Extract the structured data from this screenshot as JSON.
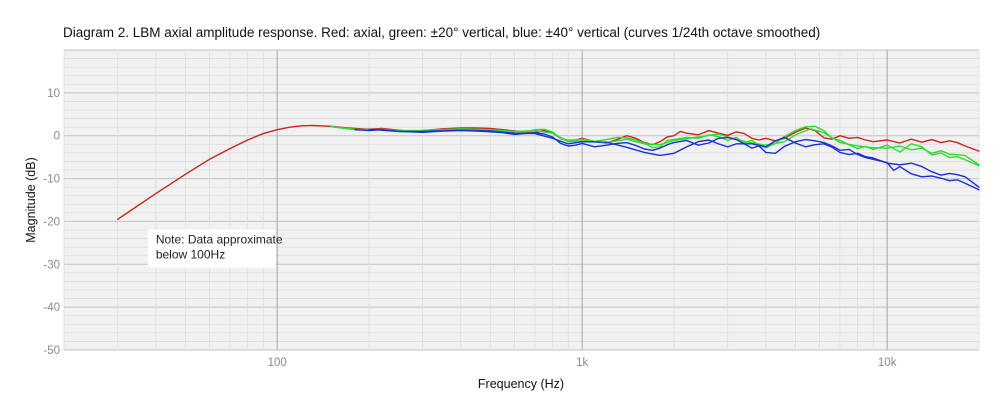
{
  "chart_data": {
    "type": "line",
    "title": "Diagram 2. LBM axial amplitude response. Red: axial, green: ±20° vertical, blue: ±40° vertical (curves 1/24th octave smoothed)",
    "xlabel": "Frequency (Hz)",
    "ylabel": "Magnitude (dB)",
    "xscale": "log",
    "xlim": [
      20,
      20000
    ],
    "ylim": [
      -50,
      20
    ],
    "x_ticks": [
      {
        "value": 100,
        "label": "100"
      },
      {
        "value": 1000,
        "label": "1k"
      },
      {
        "value": 10000,
        "label": "10k"
      }
    ],
    "y_ticks": [
      {
        "value": 10,
        "label": "10"
      },
      {
        "value": 0,
        "label": "0"
      },
      {
        "value": -10,
        "label": "-10"
      },
      {
        "value": -20,
        "label": "-20"
      },
      {
        "value": -30,
        "label": "-30"
      },
      {
        "value": -40,
        "label": "-40"
      },
      {
        "value": -50,
        "label": "-50"
      }
    ],
    "grid": true,
    "legend": "none",
    "annotation": {
      "lines": [
        "Note: Data approximate",
        "below 100Hz"
      ],
      "x": 40,
      "y": -24
    },
    "series": [
      {
        "color": "#c8261e",
        "points": [
          [
            30,
            -19.5
          ],
          [
            40,
            -13.5
          ],
          [
            50,
            -9
          ],
          [
            60,
            -5.5
          ],
          [
            70,
            -3
          ],
          [
            80,
            -1
          ],
          [
            90,
            0.5
          ],
          [
            100,
            1.4
          ],
          [
            110,
            2
          ],
          [
            120,
            2.3
          ],
          [
            130,
            2.4
          ],
          [
            150,
            2.2
          ],
          [
            170,
            1.8
          ],
          [
            200,
            1.5
          ],
          [
            220,
            1.7
          ],
          [
            250,
            1.3
          ],
          [
            280,
            1
          ],
          [
            300,
            1.2
          ],
          [
            350,
            1.6
          ],
          [
            400,
            1.8
          ],
          [
            450,
            1.8
          ],
          [
            500,
            1.7
          ],
          [
            550,
            1.4
          ],
          [
            600,
            1.1
          ],
          [
            650,
            0.7
          ],
          [
            700,
            0.8
          ],
          [
            750,
            1.2
          ],
          [
            800,
            0.6
          ],
          [
            850,
            -0.6
          ],
          [
            900,
            -1.1
          ],
          [
            950,
            -1
          ],
          [
            1000,
            -0.6
          ],
          [
            1100,
            -1.4
          ],
          [
            1200,
            -1.7
          ],
          [
            1300,
            -0.9
          ],
          [
            1400,
            0
          ],
          [
            1500,
            -0.6
          ],
          [
            1600,
            -1.6
          ],
          [
            1700,
            -2.1
          ],
          [
            1800,
            -1.4
          ],
          [
            1900,
            -0.3
          ],
          [
            2000,
            0
          ],
          [
            2100,
            1
          ],
          [
            2200,
            0.6
          ],
          [
            2400,
            0.2
          ],
          [
            2600,
            1.2
          ],
          [
            2800,
            0.6
          ],
          [
            3000,
            0.1
          ],
          [
            3200,
            0.9
          ],
          [
            3400,
            0.5
          ],
          [
            3600,
            -0.6
          ],
          [
            3800,
            -1
          ],
          [
            4000,
            -0.6
          ],
          [
            4300,
            -1.2
          ],
          [
            4600,
            -0.6
          ],
          [
            5000,
            0.8
          ],
          [
            5400,
            1.8
          ],
          [
            5800,
            1.2
          ],
          [
            6200,
            -0.5
          ],
          [
            6600,
            -0.8
          ],
          [
            7000,
            0
          ],
          [
            7500,
            -0.6
          ],
          [
            8000,
            -0.4
          ],
          [
            8500,
            -1
          ],
          [
            9000,
            -1.4
          ],
          [
            10000,
            -1
          ],
          [
            11000,
            -1.7
          ],
          [
            12000,
            -0.8
          ],
          [
            13000,
            -1.5
          ],
          [
            14000,
            -0.9
          ],
          [
            15000,
            -1.6
          ],
          [
            16000,
            -1.2
          ],
          [
            17000,
            -1.6
          ],
          [
            18000,
            -2.4
          ],
          [
            20000,
            -3.6
          ]
        ]
      },
      {
        "color": "#2fdc2f",
        "points": [
          [
            150,
            2.1
          ],
          [
            180,
            1.4
          ],
          [
            200,
            1.3
          ],
          [
            220,
            1.5
          ],
          [
            250,
            1.1
          ],
          [
            300,
            1.1
          ],
          [
            350,
            1.4
          ],
          [
            400,
            1.5
          ],
          [
            450,
            1.4
          ],
          [
            500,
            1.3
          ],
          [
            550,
            1.1
          ],
          [
            600,
            0.9
          ],
          [
            650,
            0.9
          ],
          [
            700,
            1.4
          ],
          [
            750,
            1.5
          ],
          [
            800,
            0.9
          ],
          [
            850,
            -0.7
          ],
          [
            900,
            -1.2
          ],
          [
            1000,
            -0.8
          ],
          [
            1100,
            -1.3
          ],
          [
            1200,
            -0.9
          ],
          [
            1300,
            -0.4
          ],
          [
            1400,
            -0.5
          ],
          [
            1500,
            -1
          ],
          [
            1600,
            -1.7
          ],
          [
            1700,
            -2.8
          ],
          [
            1800,
            -2.6
          ],
          [
            1900,
            -1.1
          ],
          [
            2000,
            -0.9
          ],
          [
            2200,
            -0.4
          ],
          [
            2400,
            -0.6
          ],
          [
            2600,
            0.2
          ],
          [
            2800,
            -0.2
          ],
          [
            3000,
            -1.1
          ],
          [
            3200,
            -0.4
          ],
          [
            3400,
            -1.6
          ],
          [
            3600,
            -1.1
          ],
          [
            3800,
            -2.2
          ],
          [
            4000,
            -2.8
          ],
          [
            4300,
            -1.8
          ],
          [
            4600,
            -0.2
          ],
          [
            5000,
            1.2
          ],
          [
            5400,
            2.1
          ],
          [
            5800,
            2.2
          ],
          [
            6200,
            1.2
          ],
          [
            6600,
            -0.6
          ],
          [
            7000,
            -1.1
          ],
          [
            7500,
            -2.1
          ],
          [
            8000,
            -3
          ],
          [
            8500,
            -2.5
          ],
          [
            9000,
            -3.2
          ],
          [
            10000,
            -2.2
          ],
          [
            11000,
            -3.8
          ],
          [
            12000,
            -1.9
          ],
          [
            13000,
            -2.6
          ],
          [
            14000,
            -4.5
          ],
          [
            15000,
            -4
          ],
          [
            16000,
            -5.1
          ],
          [
            17000,
            -4.9
          ],
          [
            18000,
            -5.6
          ],
          [
            20000,
            -7
          ]
        ]
      },
      {
        "color": "#2fdc2f",
        "points": [
          [
            150,
            2.1
          ],
          [
            180,
            1.5
          ],
          [
            200,
            1.4
          ],
          [
            250,
            1.2
          ],
          [
            300,
            1.2
          ],
          [
            400,
            1.6
          ],
          [
            500,
            1.4
          ],
          [
            600,
            1
          ],
          [
            700,
            1.2
          ],
          [
            800,
            0.6
          ],
          [
            900,
            -1.4
          ],
          [
            1000,
            -1.2
          ],
          [
            1200,
            -1.6
          ],
          [
            1400,
            -0.8
          ],
          [
            1600,
            -1.9
          ],
          [
            1800,
            -2.1
          ],
          [
            2000,
            -1.1
          ],
          [
            2400,
            -0.3
          ],
          [
            2800,
            0.4
          ],
          [
            3200,
            -0.9
          ],
          [
            3600,
            -1.7
          ],
          [
            4000,
            -2.2
          ],
          [
            4600,
            -1.4
          ],
          [
            5000,
            0.2
          ],
          [
            5600,
            1.6
          ],
          [
            6200,
            0.7
          ],
          [
            7000,
            -1.6
          ],
          [
            8000,
            -2.4
          ],
          [
            9000,
            -2.8
          ],
          [
            10000,
            -2.9
          ],
          [
            11000,
            -2.4
          ],
          [
            12000,
            -3.3
          ],
          [
            13000,
            -2.9
          ],
          [
            14000,
            -4.1
          ],
          [
            15000,
            -3.5
          ],
          [
            16000,
            -4.3
          ],
          [
            18000,
            -4.6
          ],
          [
            20000,
            -6.8
          ]
        ]
      },
      {
        "color": "#1b2fd6",
        "points": [
          [
            180,
            1.4
          ],
          [
            200,
            1.2
          ],
          [
            220,
            1.4
          ],
          [
            250,
            1
          ],
          [
            300,
            0.8
          ],
          [
            350,
            1.1
          ],
          [
            400,
            1.2
          ],
          [
            450,
            1.1
          ],
          [
            500,
            0.9
          ],
          [
            550,
            0.7
          ],
          [
            600,
            0.3
          ],
          [
            650,
            0.5
          ],
          [
            700,
            0.7
          ],
          [
            750,
            0.4
          ],
          [
            800,
            -0.3
          ],
          [
            850,
            -1.8
          ],
          [
            900,
            -2.4
          ],
          [
            950,
            -2.2
          ],
          [
            1000,
            -1.8
          ],
          [
            1100,
            -2.6
          ],
          [
            1200,
            -2.2
          ],
          [
            1300,
            -1.8
          ],
          [
            1400,
            -1.6
          ],
          [
            1500,
            -2.3
          ],
          [
            1600,
            -3.1
          ],
          [
            1700,
            -3.4
          ],
          [
            1800,
            -2.9
          ],
          [
            1900,
            -2.1
          ],
          [
            2000,
            -1.6
          ],
          [
            2200,
            -1.1
          ],
          [
            2400,
            -2.2
          ],
          [
            2600,
            -1.7
          ],
          [
            2800,
            -0.6
          ],
          [
            3000,
            -0.4
          ],
          [
            3200,
            -0.9
          ],
          [
            3400,
            -1.9
          ],
          [
            3600,
            -2.9
          ],
          [
            3800,
            -2.4
          ],
          [
            4000,
            -3.9
          ],
          [
            4300,
            -4.1
          ],
          [
            4600,
            -2.5
          ],
          [
            5000,
            -1.4
          ],
          [
            5400,
            -0.9
          ],
          [
            5800,
            -1.2
          ],
          [
            6200,
            -1.6
          ],
          [
            6600,
            -2.4
          ],
          [
            7000,
            -3.4
          ],
          [
            7500,
            -3.2
          ],
          [
            8000,
            -4.4
          ],
          [
            8500,
            -5.1
          ],
          [
            9000,
            -5.5
          ],
          [
            10000,
            -6.3
          ],
          [
            10500,
            -8.1
          ],
          [
            11000,
            -7.2
          ],
          [
            12000,
            -8.9
          ],
          [
            13000,
            -9.6
          ],
          [
            14000,
            -9.4
          ],
          [
            15000,
            -9.9
          ],
          [
            16000,
            -10.5
          ],
          [
            17000,
            -10.3
          ],
          [
            18000,
            -11.1
          ],
          [
            20000,
            -12.6
          ]
        ]
      },
      {
        "color": "#1b2fd6",
        "points": [
          [
            200,
            1.5
          ],
          [
            250,
            1
          ],
          [
            300,
            1
          ],
          [
            400,
            1.3
          ],
          [
            500,
            1.1
          ],
          [
            600,
            0.6
          ],
          [
            700,
            0.5
          ],
          [
            800,
            -0.6
          ],
          [
            900,
            -1.9
          ],
          [
            1000,
            -1.4
          ],
          [
            1200,
            -1.5
          ],
          [
            1400,
            -2.7
          ],
          [
            1600,
            -3.9
          ],
          [
            1800,
            -4.6
          ],
          [
            2000,
            -4.1
          ],
          [
            2200,
            -2.6
          ],
          [
            2400,
            -1.4
          ],
          [
            2600,
            -1
          ],
          [
            2800,
            -1.9
          ],
          [
            3000,
            -2.6
          ],
          [
            3200,
            -1.9
          ],
          [
            3600,
            -1.9
          ],
          [
            4000,
            -2.6
          ],
          [
            4300,
            -1.2
          ],
          [
            4600,
            -0.4
          ],
          [
            5000,
            -1.7
          ],
          [
            5400,
            -2.6
          ],
          [
            5800,
            -2.1
          ],
          [
            6200,
            -1.9
          ],
          [
            6600,
            -2.7
          ],
          [
            7000,
            -3.9
          ],
          [
            7500,
            -4.4
          ],
          [
            8000,
            -4.1
          ],
          [
            8500,
            -4.9
          ],
          [
            9000,
            -5.2
          ],
          [
            10000,
            -6.4
          ],
          [
            11000,
            -6.8
          ],
          [
            12000,
            -6.4
          ],
          [
            13000,
            -7.2
          ],
          [
            14000,
            -8.4
          ],
          [
            15000,
            -9.2
          ],
          [
            16000,
            -8.8
          ],
          [
            17000,
            -9.1
          ],
          [
            18000,
            -9.6
          ],
          [
            20000,
            -12
          ]
        ]
      }
    ]
  }
}
